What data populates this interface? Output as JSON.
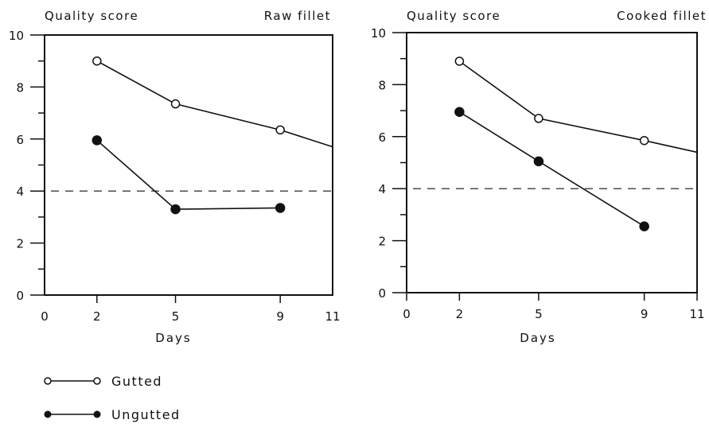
{
  "chart_data": [
    {
      "type": "line",
      "title_left": "Quality score",
      "title_right": "Raw fillet",
      "xlabel": "Days",
      "ylabel": "Quality score",
      "xlim": [
        0,
        11
      ],
      "ylim": [
        0,
        10
      ],
      "x_ticks": [
        0,
        2,
        5,
        9,
        11
      ],
      "y_ticks": [
        0,
        2,
        4,
        6,
        8,
        10
      ],
      "reference_line": 4,
      "series": [
        {
          "name": "Gutted",
          "marker": "open",
          "x": [
            2,
            5,
            9,
            11
          ],
          "y": [
            9.0,
            7.35,
            6.35,
            5.7
          ],
          "marked": [
            true,
            true,
            true,
            false
          ]
        },
        {
          "name": "Ungutted",
          "marker": "filled",
          "x": [
            2,
            5,
            9
          ],
          "y": [
            5.95,
            3.3,
            3.35
          ],
          "marked": [
            true,
            true,
            true
          ]
        }
      ]
    },
    {
      "type": "line",
      "title_left": "Quality score",
      "title_right": "Cooked fillet",
      "xlabel": "Days",
      "ylabel": "Quality score",
      "xlim": [
        0,
        11
      ],
      "ylim": [
        0,
        10
      ],
      "x_ticks": [
        0,
        2,
        5,
        9,
        11
      ],
      "y_ticks": [
        0,
        2,
        4,
        6,
        8,
        10
      ],
      "reference_line": 4,
      "series": [
        {
          "name": "Gutted",
          "marker": "open",
          "x": [
            2,
            5,
            9,
            11
          ],
          "y": [
            8.9,
            6.7,
            5.85,
            5.4
          ],
          "marked": [
            true,
            true,
            true,
            false
          ]
        },
        {
          "name": "Ungutted",
          "marker": "filled",
          "x": [
            2,
            5,
            9
          ],
          "y": [
            6.95,
            5.05,
            2.55
          ],
          "marked": [
            true,
            true,
            true
          ]
        }
      ]
    }
  ],
  "legend": [
    {
      "label": "Gutted",
      "marker": "open"
    },
    {
      "label": "Ungutted",
      "marker": "filled"
    }
  ]
}
